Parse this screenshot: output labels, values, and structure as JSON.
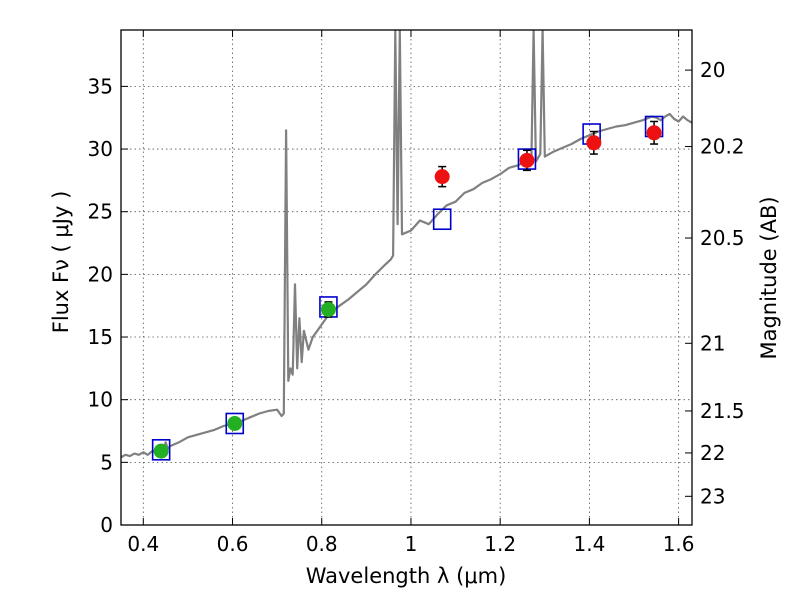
{
  "chart_data": {
    "type": "scatter",
    "xlabel": "Wavelength  λ (μm)",
    "ylabel": "Flux  Fν  ( μJy )",
    "y2label": "Magnitude (AB)",
    "xlim": [
      0.35,
      1.63
    ],
    "ylim": [
      0,
      39.5
    ],
    "grid": true,
    "x_ticks": [
      {
        "value": 0.4,
        "label": "0.4"
      },
      {
        "value": 0.6,
        "label": "0.6"
      },
      {
        "value": 0.8,
        "label": "0.8"
      },
      {
        "value": 1.0,
        "label": "1"
      },
      {
        "value": 1.2,
        "label": "1.2"
      },
      {
        "value": 1.4,
        "label": "1.4"
      },
      {
        "value": 1.6,
        "label": "1.6"
      }
    ],
    "y_ticks": [
      {
        "value": 0,
        "label": "0"
      },
      {
        "value": 5,
        "label": "5"
      },
      {
        "value": 10,
        "label": "10"
      },
      {
        "value": 15,
        "label": "15"
      },
      {
        "value": 20,
        "label": "20"
      },
      {
        "value": 25,
        "label": "25"
      },
      {
        "value": 30,
        "label": "30"
      },
      {
        "value": 35,
        "label": "35"
      }
    ],
    "y2_ticks": [
      {
        "label": "20",
        "flux": 36.3
      },
      {
        "label": "20.2",
        "flux": 30.2
      },
      {
        "label": "20.5",
        "flux": 22.9
      },
      {
        "label": "21",
        "flux": 14.5
      },
      {
        "label": "21.5",
        "flux": 9.1
      },
      {
        "label": "22",
        "flux": 5.75
      },
      {
        "label": "23",
        "flux": 2.29
      }
    ],
    "colors": {
      "model": "#808080",
      "model_points": "#0000cc",
      "green_points": "#22b022",
      "red_points": "#ee1111",
      "grid": "#555555"
    },
    "model_spectrum": [
      [
        0.35,
        5.4
      ],
      [
        0.36,
        5.6
      ],
      [
        0.37,
        5.5
      ],
      [
        0.38,
        5.7
      ],
      [
        0.39,
        5.6
      ],
      [
        0.4,
        5.8
      ],
      [
        0.41,
        5.6
      ],
      [
        0.42,
        5.9
      ],
      [
        0.43,
        5.8
      ],
      [
        0.44,
        6.0
      ],
      [
        0.445,
        5.8
      ],
      [
        0.45,
        6.6
      ],
      [
        0.455,
        6.1
      ],
      [
        0.46,
        6.3
      ],
      [
        0.48,
        6.6
      ],
      [
        0.5,
        7.0
      ],
      [
        0.52,
        7.2
      ],
      [
        0.54,
        7.4
      ],
      [
        0.56,
        7.6
      ],
      [
        0.58,
        7.9
      ],
      [
        0.6,
        8.1
      ],
      [
        0.62,
        8.3
      ],
      [
        0.64,
        8.6
      ],
      [
        0.66,
        8.9
      ],
      [
        0.68,
        9.1
      ],
      [
        0.7,
        9.2
      ],
      [
        0.71,
        8.7
      ],
      [
        0.715,
        8.9
      ],
      [
        0.72,
        31.5
      ],
      [
        0.725,
        11.5
      ],
      [
        0.73,
        12.5
      ],
      [
        0.735,
        12.0
      ],
      [
        0.74,
        19.2
      ],
      [
        0.745,
        12.5
      ],
      [
        0.75,
        16.5
      ],
      [
        0.755,
        13.0
      ],
      [
        0.76,
        15.5
      ],
      [
        0.77,
        14.0
      ],
      [
        0.78,
        15.0
      ],
      [
        0.79,
        15.5
      ],
      [
        0.8,
        16.0
      ],
      [
        0.82,
        17.0
      ],
      [
        0.84,
        17.5
      ],
      [
        0.86,
        18.0
      ],
      [
        0.88,
        18.6
      ],
      [
        0.9,
        19.2
      ],
      [
        0.92,
        20.0
      ],
      [
        0.94,
        20.7
      ],
      [
        0.955,
        21.2
      ],
      [
        0.96,
        21.5
      ],
      [
        0.965,
        39.5
      ],
      [
        0.97,
        24.0
      ],
      [
        0.975,
        39.5
      ],
      [
        0.98,
        23.2
      ],
      [
        1.0,
        23.5
      ],
      [
        1.02,
        24.3
      ],
      [
        1.04,
        24.0
      ],
      [
        1.06,
        24.8
      ],
      [
        1.08,
        25.5
      ],
      [
        1.1,
        25.8
      ],
      [
        1.12,
        26.5
      ],
      [
        1.14,
        26.8
      ],
      [
        1.16,
        27.3
      ],
      [
        1.18,
        27.6
      ],
      [
        1.2,
        28.0
      ],
      [
        1.22,
        28.5
      ],
      [
        1.24,
        28.7
      ],
      [
        1.255,
        29.0
      ],
      [
        1.26,
        29.2
      ],
      [
        1.265,
        29.4
      ],
      [
        1.27,
        29.1
      ],
      [
        1.275,
        39.5
      ],
      [
        1.28,
        29.0
      ],
      [
        1.29,
        29.6
      ],
      [
        1.295,
        39.5
      ],
      [
        1.3,
        29.4
      ],
      [
        1.32,
        29.8
      ],
      [
        1.34,
        30.1
      ],
      [
        1.36,
        30.4
      ],
      [
        1.38,
        30.8
      ],
      [
        1.4,
        31.1
      ],
      [
        1.42,
        31.4
      ],
      [
        1.44,
        31.6
      ],
      [
        1.46,
        31.8
      ],
      [
        1.48,
        31.9
      ],
      [
        1.5,
        32.1
      ],
      [
        1.52,
        32.3
      ],
      [
        1.54,
        32.6
      ],
      [
        1.55,
        32.5
      ],
      [
        1.56,
        32.3
      ],
      [
        1.57,
        32.6
      ],
      [
        1.58,
        32.8
      ],
      [
        1.59,
        32.4
      ],
      [
        1.6,
        32.2
      ],
      [
        1.61,
        32.6
      ],
      [
        1.62,
        32.3
      ],
      [
        1.63,
        32.1
      ]
    ],
    "model_photometry": [
      {
        "x": 0.44,
        "y": 6.0
      },
      {
        "x": 0.605,
        "y": 8.1
      },
      {
        "x": 0.815,
        "y": 17.4
      },
      {
        "x": 1.07,
        "y": 24.4
      },
      {
        "x": 1.26,
        "y": 29.2
      },
      {
        "x": 1.405,
        "y": 31.2
      },
      {
        "x": 1.545,
        "y": 31.8
      }
    ],
    "observed_green": [
      {
        "x": 0.44,
        "y": 5.9,
        "err": 0.3
      },
      {
        "x": 0.605,
        "y": 8.1,
        "err": 0.4
      },
      {
        "x": 0.815,
        "y": 17.2,
        "err": 0.6
      }
    ],
    "observed_red": [
      {
        "x": 1.07,
        "y": 27.8,
        "err": 0.8
      },
      {
        "x": 1.26,
        "y": 29.1,
        "err": 0.8
      },
      {
        "x": 1.41,
        "y": 30.5,
        "err": 0.9
      },
      {
        "x": 1.545,
        "y": 31.3,
        "err": 0.9
      }
    ]
  }
}
